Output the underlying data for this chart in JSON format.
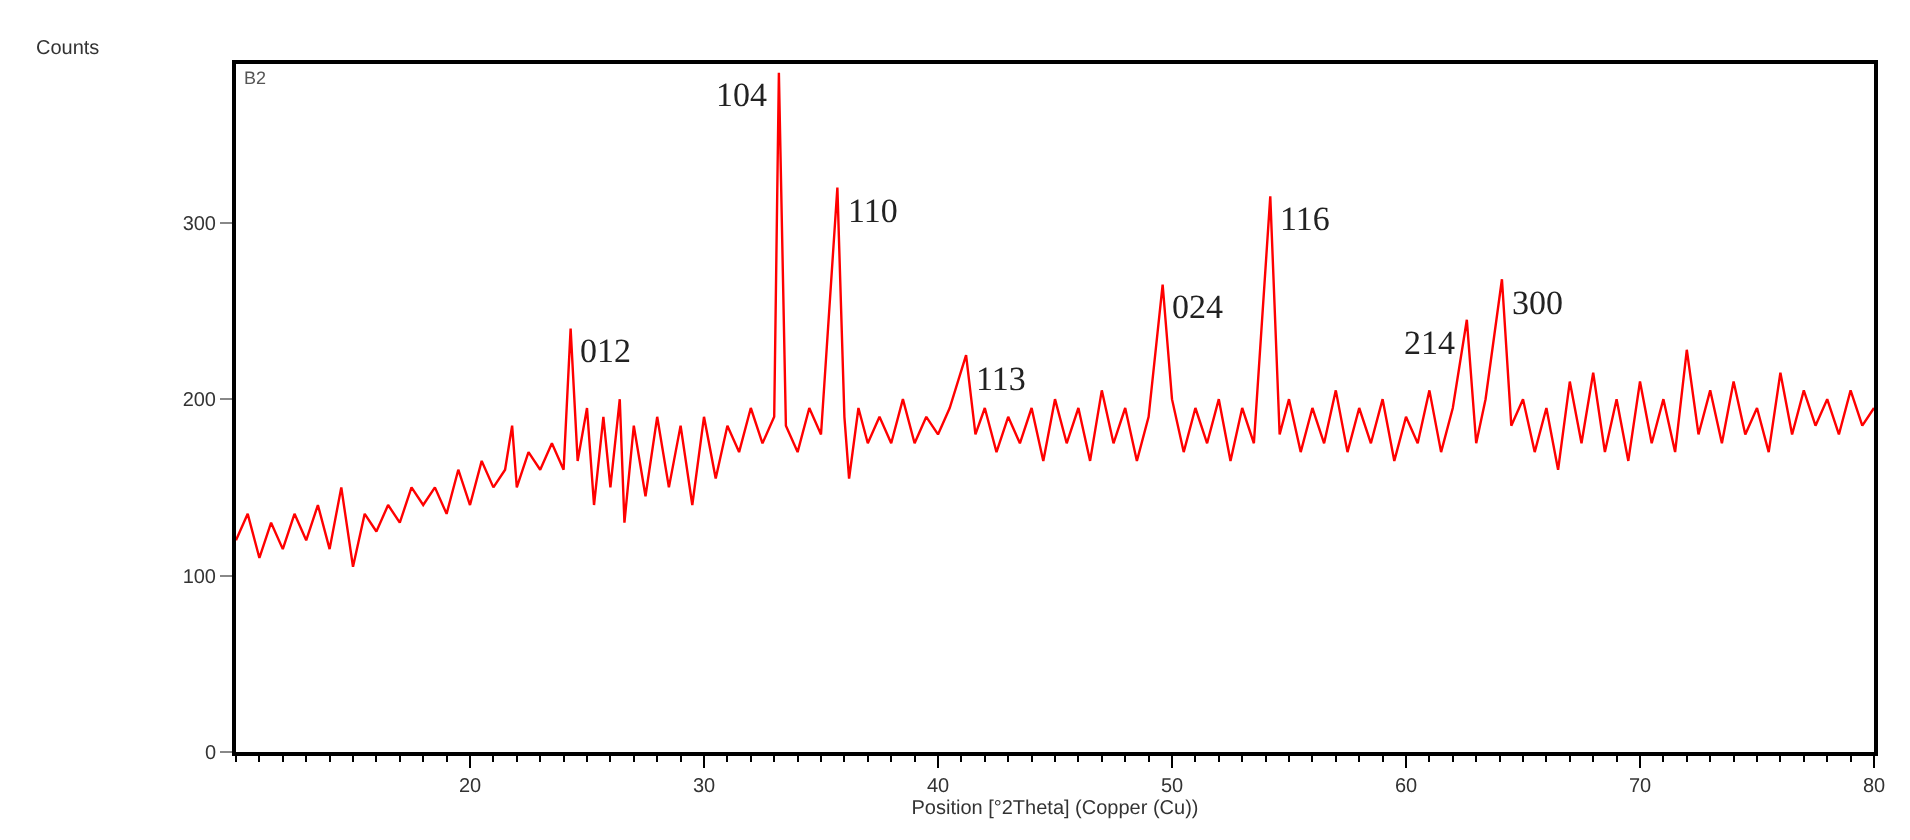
{
  "chart_data": {
    "type": "line",
    "xlabel": "Position [°2Theta] (Copper (Cu))",
    "ylabel": "Counts",
    "xlim": [
      10,
      80
    ],
    "xticks": [
      20,
      30,
      40,
      50,
      60,
      70,
      80
    ],
    "ylim": [
      0,
      390
    ],
    "yticks": [
      0,
      100,
      200,
      300
    ],
    "marker": "none",
    "line_style": "solid",
    "x": [
      10,
      10.5,
      11,
      11.5,
      12,
      12.5,
      13,
      13.5,
      14,
      14.5,
      15,
      15.5,
      16,
      16.5,
      17,
      17.5,
      18,
      18.5,
      19,
      19.5,
      20,
      20.5,
      21,
      21.5,
      21.8,
      22,
      22.5,
      23,
      23.5,
      24,
      24.3,
      24.6,
      25,
      25.3,
      25.7,
      26,
      26.4,
      26.6,
      27,
      27.5,
      28,
      28.5,
      29,
      29.5,
      30,
      30.5,
      31,
      31.5,
      32,
      32.5,
      33,
      33.2,
      33.5,
      34,
      34.5,
      35,
      35.7,
      36,
      36.2,
      36.6,
      37,
      37.5,
      38,
      38.5,
      39,
      39.5,
      40,
      40.5,
      41.2,
      41.6,
      42,
      42.5,
      43,
      43.5,
      44,
      44.5,
      45,
      45.5,
      46,
      46.5,
      47,
      47.5,
      48,
      48.5,
      49,
      49.6,
      50,
      50.5,
      51,
      51.5,
      52,
      52.5,
      53,
      53.5,
      54.2,
      54.6,
      55,
      55.5,
      56,
      56.5,
      57,
      57.5,
      58,
      58.5,
      59,
      59.5,
      60,
      60.5,
      61,
      61.5,
      62,
      62.6,
      63,
      63.4,
      64.1,
      64.5,
      65,
      65.5,
      66,
      66.5,
      67,
      67.5,
      68,
      68.5,
      69,
      69.5,
      70,
      70.5,
      71,
      71.5,
      72,
      72.5,
      73,
      73.5,
      74,
      74.5,
      75,
      75.5,
      76,
      76.5,
      77,
      77.5,
      78,
      78.5,
      79,
      79.5,
      80
    ],
    "series": [
      {
        "color": "#ff0000",
        "values": [
          120,
          135,
          110,
          130,
          115,
          135,
          120,
          140,
          115,
          150,
          105,
          135,
          125,
          140,
          130,
          150,
          140,
          150,
          135,
          160,
          140,
          165,
          150,
          160,
          185,
          150,
          170,
          160,
          175,
          160,
          240,
          165,
          195,
          140,
          190,
          150,
          200,
          130,
          185,
          145,
          190,
          150,
          185,
          140,
          190,
          155,
          185,
          170,
          195,
          175,
          190,
          385,
          185,
          170,
          195,
          180,
          320,
          190,
          155,
          195,
          175,
          190,
          175,
          200,
          175,
          190,
          180,
          195,
          225,
          180,
          195,
          170,
          190,
          175,
          195,
          165,
          200,
          175,
          195,
          165,
          205,
          175,
          195,
          165,
          190,
          265,
          200,
          170,
          195,
          175,
          200,
          165,
          195,
          175,
          315,
          180,
          200,
          170,
          195,
          175,
          205,
          170,
          195,
          175,
          200,
          165,
          190,
          175,
          205,
          170,
          195,
          245,
          175,
          200,
          268,
          185,
          200,
          170,
          195,
          160,
          210,
          175,
          215,
          170,
          200,
          165,
          210,
          175,
          200,
          170,
          228,
          180,
          205,
          175,
          210,
          180,
          195,
          170,
          215,
          180,
          205,
          185,
          200,
          180,
          205,
          185,
          195
        ]
      }
    ],
    "annotations": [
      "B2",
      {
        "text": "012",
        "x": 24.3,
        "y": 240
      },
      {
        "text": "104",
        "x": 33.2,
        "y": 385
      },
      {
        "text": "110",
        "x": 35.7,
        "y": 320
      },
      {
        "text": "113",
        "x": 41.2,
        "y": 225
      },
      {
        "text": "024",
        "x": 49.6,
        "y": 265
      },
      {
        "text": "116",
        "x": 54.2,
        "y": 315
      },
      {
        "text": "214",
        "x": 62.6,
        "y": 245
      },
      {
        "text": "300",
        "x": 64.1,
        "y": 268
      }
    ]
  }
}
